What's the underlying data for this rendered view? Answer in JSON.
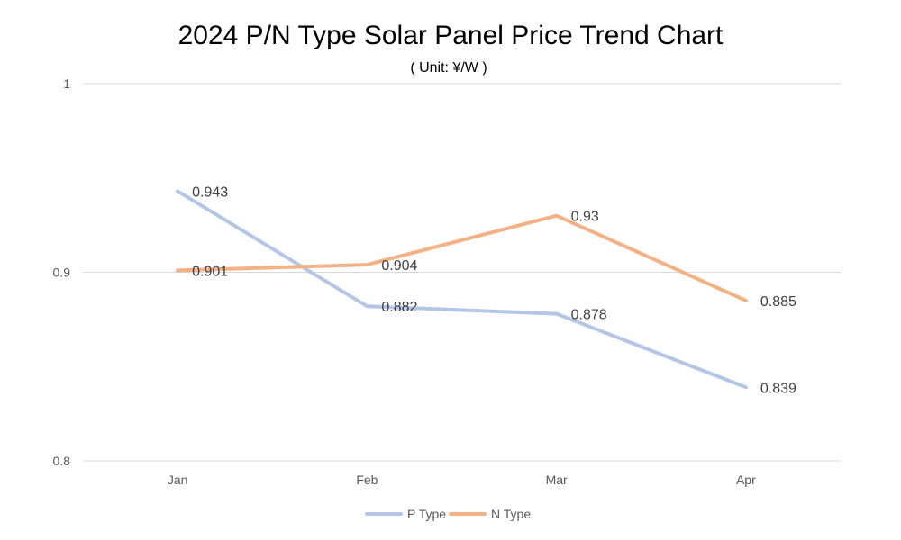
{
  "chart_data": {
    "type": "line",
    "title": "2024 P/N Type Solar Panel Price Trend Chart",
    "subtitle": "( Unit: ¥/W )",
    "categories": [
      "Jan",
      "Feb",
      "Mar",
      "Apr"
    ],
    "series": [
      {
        "name": "P Type",
        "values": [
          0.943,
          0.882,
          0.878,
          0.839
        ],
        "labels": [
          "0.943",
          "0.882",
          "0.878",
          "0.839"
        ],
        "color": "#b4c6e7"
      },
      {
        "name": "N Type",
        "values": [
          0.901,
          0.904,
          0.93,
          0.885
        ],
        "labels": [
          "0.901",
          "0.904",
          "0.93",
          "0.885"
        ],
        "color": "#f4b183"
      }
    ],
    "ylim": [
      0.8,
      1
    ],
    "yticks": [
      0.8,
      0.9,
      1
    ],
    "ytick_labels": [
      "0.8",
      "0.9",
      "1"
    ],
    "grid": true,
    "legend": "bottom",
    "data_labels": true
  }
}
